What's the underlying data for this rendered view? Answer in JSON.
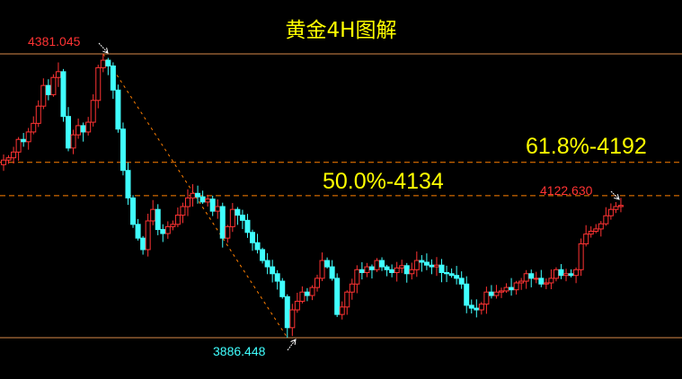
{
  "chart_data": {
    "type": "candlestick",
    "title": "黄金4H图解",
    "up_color": "#ff3333",
    "down_color": "#40ffff",
    "close": [
      4196,
      4200,
      4210,
      4232,
      4228,
      4245,
      4260,
      4290,
      4326,
      4310,
      4340,
      4350,
      4272,
      4217,
      4240,
      4256,
      4245,
      4262,
      4300,
      4357,
      4370,
      4360,
      4318,
      4250,
      4178,
      4130,
      4084,
      4060,
      4040,
      4090,
      4110,
      4075,
      4068,
      4080,
      4084,
      4100,
      4115,
      4130,
      4138,
      4132,
      4123,
      4128,
      4107,
      4115,
      4060,
      4080,
      4110,
      4100,
      4091,
      4070,
      4052,
      4040,
      4021,
      4010,
      3998,
      3985,
      3958,
      3904,
      3935,
      3950,
      3966,
      3960,
      3974,
      3990,
      4021,
      4010,
      3990,
      3927,
      3940,
      3966,
      3980,
      4005,
      4000,
      4010,
      4005,
      4021,
      4010,
      4005,
      4000,
      4008,
      4012,
      3998,
      4005,
      4021,
      4018,
      4013,
      4010,
      4013,
      4000,
      3998,
      3995,
      3990,
      3980,
      3943,
      3938,
      3935,
      3945,
      3966,
      3960,
      3966,
      3968,
      3974,
      3970,
      3982,
      3985,
      3998,
      3990,
      3990,
      3980,
      3982,
      3990,
      4005,
      3995,
      3998,
      3995,
      4005,
      4050,
      4067,
      4072,
      4076,
      4085,
      4099,
      4110,
      4115,
      4117
    ],
    "ylim": [
      3867,
      4475
    ],
    "levels": [
      {
        "value": 4381.045,
        "label": "4381.045",
        "style": "solid",
        "color": "#d88a4a"
      },
      {
        "value": 3886.448,
        "label": "3886.448",
        "style": "solid",
        "color": "#d88a4a"
      },
      {
        "value": 4192,
        "label": "61.8%-4192",
        "style": "dashed",
        "color": "#ff7f00"
      },
      {
        "value": 4134,
        "label": "50.0%-4134",
        "style": "dashed",
        "color": "#ff7f00"
      }
    ],
    "high_label": "4381.045",
    "low_label": "3886.448",
    "last_price_label": "4122.630",
    "high_index": 20,
    "low_index": 57,
    "trendline": {
      "from": [
        20,
        4381.045
      ],
      "to": [
        57,
        3886.448
      ],
      "color": "#ff7f00"
    }
  }
}
